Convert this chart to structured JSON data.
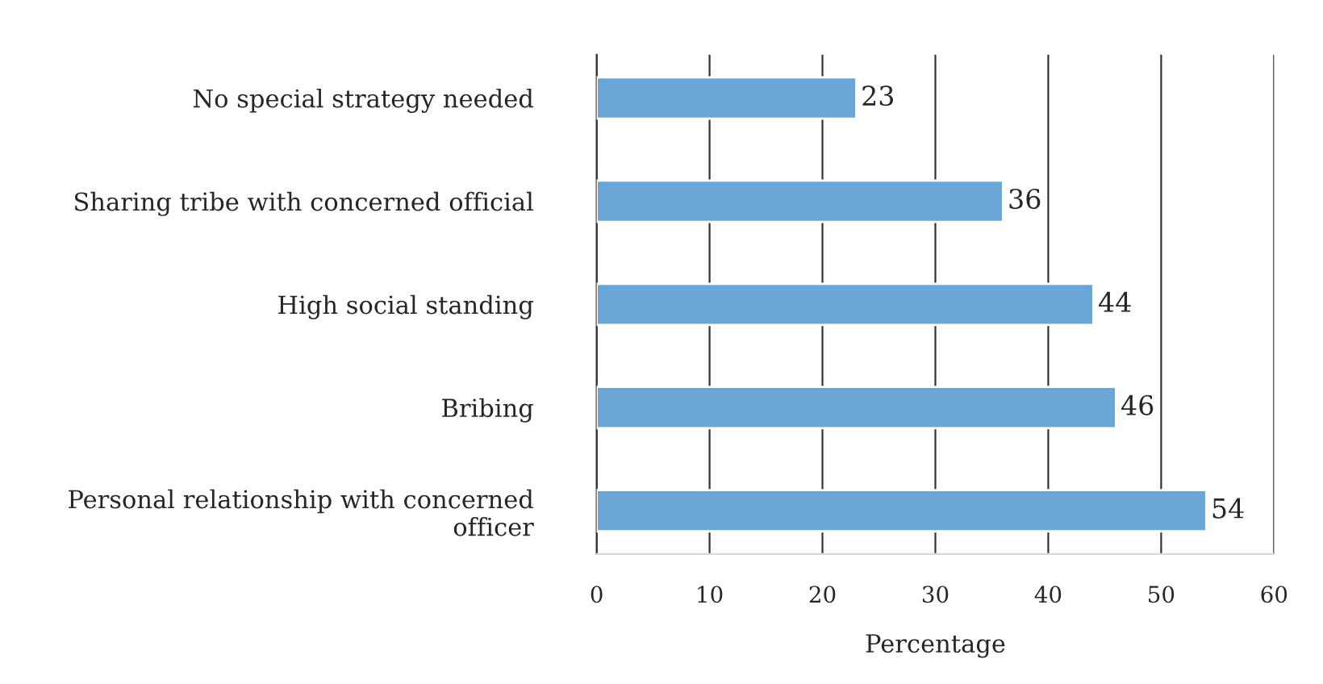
{
  "chart_data": {
    "type": "bar",
    "orientation": "horizontal",
    "xlabel": "Percentage",
    "categories": [
      "No special strategy needed",
      "Sharing tribe with concerned official",
      "High social standing",
      "Bribing",
      "Personal relationship with concerned officer"
    ],
    "values": [
      23,
      36,
      44,
      46,
      54
    ],
    "color": "#6aa6d6",
    "xlim": [
      0,
      60
    ],
    "xticks": [
      0,
      10,
      20,
      30,
      40,
      50,
      60
    ],
    "grid": "x",
    "data_labels": true
  }
}
